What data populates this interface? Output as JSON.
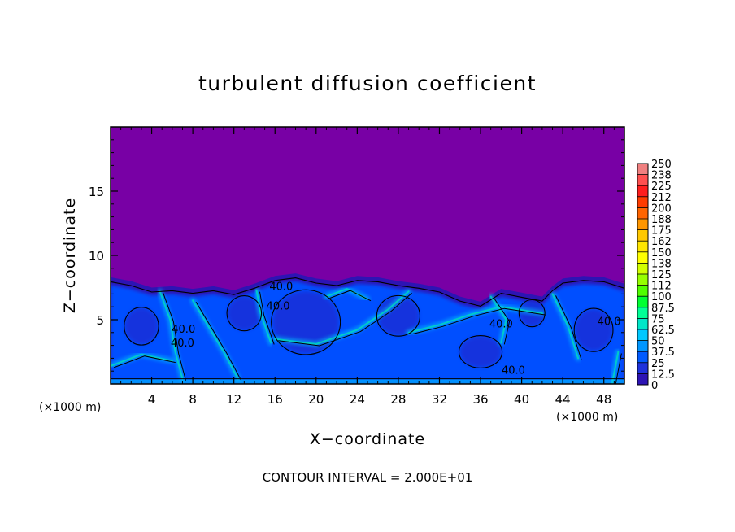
{
  "chart_data": {
    "type": "heatmap",
    "title": "turbulent diffusion coefficient",
    "xlabel": "X−coordinate",
    "ylabel": "Z−coordinate",
    "x_unit_left": "(×1000 m)",
    "x_unit_right": "(×1000 m)",
    "xlim": [
      0,
      50
    ],
    "ylim": [
      0,
      20
    ],
    "x_ticks": [
      4,
      8,
      12,
      16,
      20,
      24,
      28,
      32,
      36,
      40,
      44,
      48
    ],
    "y_ticks": [
      5,
      10,
      15
    ],
    "contour_interval": "CONTOUR INTERVAL = 2.000E+01",
    "contour_labels": [
      {
        "x": 16.6,
        "z": 7.3,
        "text": "40.0"
      },
      {
        "x": 16.3,
        "z": 5.8,
        "text": "40.0"
      },
      {
        "x": 7.1,
        "z": 4.0,
        "text": "40.0"
      },
      {
        "x": 7.0,
        "z": 2.9,
        "text": "40.0"
      },
      {
        "x": 38.0,
        "z": 4.4,
        "text": "40.0"
      },
      {
        "x": 39.2,
        "z": 0.8,
        "text": "40.0"
      },
      {
        "x": 48.5,
        "z": 4.6,
        "text": "40.0"
      }
    ],
    "colorbar": {
      "labels": [
        "250",
        "238",
        "225",
        "212",
        "200",
        "188",
        "175",
        "162",
        "150",
        "138",
        "125",
        "112",
        "100",
        "87.5",
        "75",
        "62.5",
        "50",
        "37.5",
        "25",
        "12.5",
        "0"
      ],
      "colors": [
        "#f08080",
        "#ff5050",
        "#ff1e1e",
        "#ff3c00",
        "#ff6400",
        "#ff9600",
        "#ffc800",
        "#ffe600",
        "#ffff00",
        "#d2ff00",
        "#96ff00",
        "#50ff00",
        "#00ff32",
        "#00ff96",
        "#00e6c8",
        "#00c8ff",
        "#0096ff",
        "#005aff",
        "#1e32dc",
        "#2d14b4",
        "#7800a5"
      ]
    },
    "field": {
      "background_value": 0,
      "boundary_layer_top": [
        [
          0,
          8.3
        ],
        [
          2,
          8.0
        ],
        [
          4,
          7.5
        ],
        [
          6,
          7.6
        ],
        [
          8,
          7.4
        ],
        [
          10,
          7.6
        ],
        [
          12,
          7.3
        ],
        [
          14,
          7.8
        ],
        [
          16,
          8.4
        ],
        [
          18,
          8.6
        ],
        [
          20,
          8.2
        ],
        [
          22,
          8.0
        ],
        [
          24,
          8.4
        ],
        [
          26,
          8.3
        ],
        [
          28,
          8.0
        ],
        [
          30,
          7.8
        ],
        [
          32,
          7.5
        ],
        [
          34,
          6.8
        ],
        [
          36,
          6.4
        ],
        [
          38,
          7.4
        ],
        [
          40,
          7.1
        ],
        [
          42,
          6.8
        ],
        [
          43,
          7.6
        ],
        [
          44,
          8.2
        ],
        [
          46,
          8.4
        ],
        [
          48,
          8.3
        ],
        [
          50,
          7.8
        ]
      ],
      "colors": {
        "background": "#7800a5",
        "low": "#2d14b4",
        "mid": "#0050ff",
        "high": "#00c8ff",
        "peak": "#00e6b4"
      }
    }
  }
}
